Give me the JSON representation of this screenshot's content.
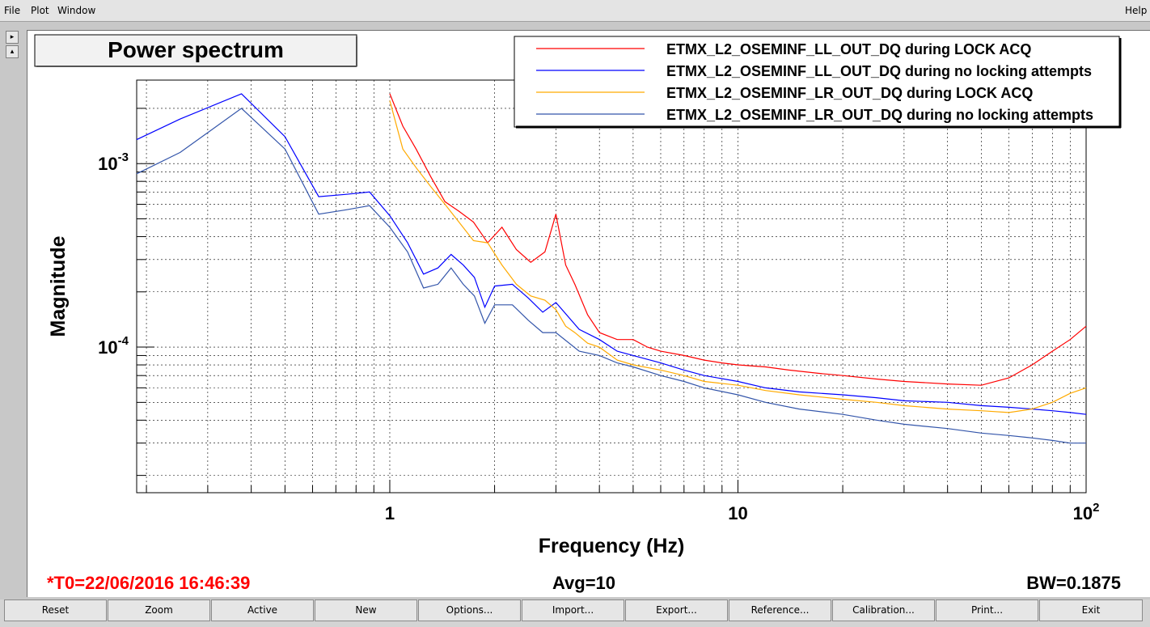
{
  "menu": {
    "file": "File",
    "plot": "Plot",
    "window": "Window",
    "help": "Help"
  },
  "side_buttons": {
    "expand": "▸",
    "collapse": "▴"
  },
  "footer": {
    "t0": "*T0=22/06/2016 16:46:39",
    "avg": "Avg=10",
    "bw": "BW=0.1875",
    "t0_color": "#ff0000"
  },
  "buttons": [
    "Reset",
    "Zoom",
    "Active",
    "New",
    "Options...",
    "Import...",
    "Export...",
    "Reference...",
    "Calibration...",
    "Print...",
    "Exit"
  ],
  "chart_data": {
    "type": "line",
    "title": "Power spectrum",
    "xlabel": "Frequency (Hz)",
    "ylabel": "Magnitude",
    "xscale": "log",
    "yscale": "log",
    "xlim": [
      0.1875,
      100
    ],
    "ylim": [
      1.61e-05,
      0.00285
    ],
    "grid": true,
    "legend_position": "top-right",
    "x_tick_labels": [
      {
        "value": 1,
        "label": "1"
      },
      {
        "value": 10,
        "label": "10"
      },
      {
        "value": 100,
        "label": "10",
        "sup": "2"
      }
    ],
    "y_tick_labels": [
      {
        "value": 0.001,
        "label": "10",
        "sup": "-3"
      },
      {
        "value": 0.0001,
        "label": "10",
        "sup": "-4"
      }
    ],
    "series": [
      {
        "name": "ETMX_L2_OSEMINF_LL_OUT_DQ during LOCK ACQ",
        "color": "#ff0000",
        "x": [
          1.0,
          1.09,
          1.19,
          1.31,
          1.44,
          1.58,
          1.74,
          1.91,
          2.1,
          2.31,
          2.54,
          2.79,
          3.0,
          3.2,
          3.4,
          3.7,
          4.0,
          4.5,
          5.0,
          5.5,
          6.0,
          7.0,
          8.0,
          9.0,
          10,
          12,
          14,
          17,
          20,
          25,
          30,
          40,
          50,
          60,
          70,
          80,
          90,
          100
        ],
        "y": [
          0.0024,
          0.0016,
          0.0012,
          0.00085,
          0.00062,
          0.00055,
          0.00048,
          0.00037,
          0.00045,
          0.00034,
          0.00029,
          0.00033,
          0.00053,
          0.00028,
          0.00022,
          0.00015,
          0.00012,
          0.00011,
          0.00011,
          0.0001,
          9.5e-05,
          9e-05,
          8.5e-05,
          8.2e-05,
          8e-05,
          7.8e-05,
          7.5e-05,
          7.2e-05,
          7e-05,
          6.7e-05,
          6.5e-05,
          6.3e-05,
          6.2e-05,
          6.8e-05,
          8e-05,
          9.5e-05,
          0.00011,
          0.00013
        ]
      },
      {
        "name": "ETMX_L2_OSEMINF_LL_OUT_DQ during no locking attempts",
        "color": "#0000ff",
        "x": [
          0.1875,
          0.25,
          0.375,
          0.5,
          0.625,
          0.75,
          0.875,
          1.0,
          1.125,
          1.25,
          1.375,
          1.5,
          1.625,
          1.75,
          1.875,
          2.0,
          2.25,
          2.5,
          2.75,
          3.0,
          3.5,
          4.0,
          4.5,
          5.0,
          6.0,
          7.0,
          8.0,
          10,
          12,
          15,
          20,
          25,
          30,
          40,
          50,
          60,
          70,
          80,
          90,
          100
        ],
        "y": [
          0.00135,
          0.00175,
          0.0024,
          0.0014,
          0.00066,
          0.00068,
          0.0007,
          0.00052,
          0.00037,
          0.00025,
          0.00027,
          0.00032,
          0.00028,
          0.00024,
          0.000165,
          0.000215,
          0.00022,
          0.000185,
          0.000155,
          0.000175,
          0.000125,
          0.00011,
          9.5e-05,
          9e-05,
          8.2e-05,
          7.5e-05,
          7e-05,
          6.5e-05,
          6e-05,
          5.7e-05,
          5.5e-05,
          5.3e-05,
          5.1e-05,
          5e-05,
          4.8e-05,
          4.7e-05,
          4.6e-05,
          4.5e-05,
          4.4e-05,
          4.3e-05
        ]
      },
      {
        "name": "ETMX_L2_OSEMINF_LR_OUT_DQ during LOCK ACQ",
        "color": "#ffaa00",
        "x": [
          1.0,
          1.09,
          1.19,
          1.31,
          1.44,
          1.58,
          1.74,
          1.91,
          2.1,
          2.31,
          2.54,
          2.79,
          3.0,
          3.2,
          3.4,
          3.7,
          4.0,
          4.5,
          5.0,
          6.0,
          7.0,
          8.0,
          10,
          12,
          15,
          20,
          25,
          30,
          40,
          50,
          60,
          70,
          80,
          90,
          100
        ],
        "y": [
          0.0022,
          0.0012,
          0.00095,
          0.00075,
          0.0006,
          0.00048,
          0.00038,
          0.00037,
          0.00028,
          0.00022,
          0.00019,
          0.00018,
          0.00016,
          0.00013,
          0.00012,
          0.000105,
          0.0001,
          8.5e-05,
          8e-05,
          7.5e-05,
          7e-05,
          6.5e-05,
          6.2e-05,
          5.8e-05,
          5.5e-05,
          5.2e-05,
          5e-05,
          4.8e-05,
          4.6e-05,
          4.5e-05,
          4.4e-05,
          4.6e-05,
          5e-05,
          5.6e-05,
          6e-05
        ]
      },
      {
        "name": "ETMX_L2_OSEMINF_LR_OUT_DQ during no locking attempts",
        "color": "#3355aa",
        "x": [
          0.1875,
          0.25,
          0.375,
          0.5,
          0.625,
          0.75,
          0.875,
          1.0,
          1.125,
          1.25,
          1.375,
          1.5,
          1.625,
          1.75,
          1.875,
          2.0,
          2.25,
          2.5,
          2.75,
          3.0,
          3.5,
          4.0,
          4.5,
          5.0,
          6.0,
          7.0,
          8.0,
          10,
          12,
          15,
          20,
          25,
          30,
          40,
          50,
          60,
          70,
          80,
          90,
          100
        ],
        "y": [
          0.00088,
          0.00115,
          0.002,
          0.0012,
          0.00053,
          0.00056,
          0.00059,
          0.00045,
          0.00033,
          0.00021,
          0.00022,
          0.00027,
          0.00022,
          0.00019,
          0.000135,
          0.00017,
          0.00017,
          0.00014,
          0.00012,
          0.00012,
          9.5e-05,
          9e-05,
          8.2e-05,
          7.8e-05,
          7e-05,
          6.5e-05,
          6e-05,
          5.5e-05,
          5e-05,
          4.6e-05,
          4.3e-05,
          4e-05,
          3.8e-05,
          3.6e-05,
          3.4e-05,
          3.3e-05,
          3.2e-05,
          3.1e-05,
          3e-05,
          3e-05
        ]
      }
    ]
  }
}
